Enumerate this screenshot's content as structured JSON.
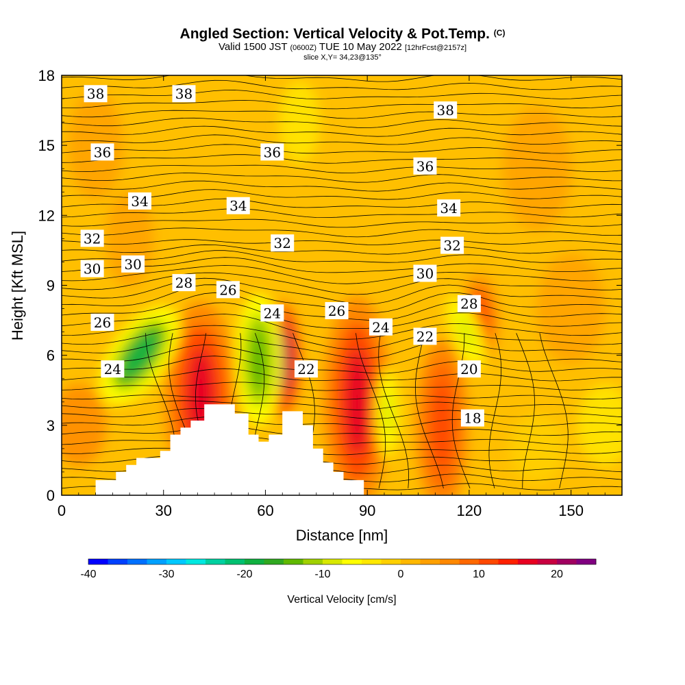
{
  "title": {
    "main": "Angled Section: Vertical Velocity & Pot.Temp.",
    "main_suffix": "(C)",
    "valid_a": "Valid 1500 JST",
    "valid_b": "(0600Z)",
    "valid_c": "TUE 10 May 2022",
    "valid_d": "[12hrFcst@2157z]",
    "slice": "slice X,Y= 34,23@135°"
  },
  "chart_data": {
    "type": "heatmap",
    "xlabel": "Distance [nm]",
    "ylabel": "Height [Kft MSL]",
    "xlim": [
      0,
      165
    ],
    "ylim": [
      0,
      18
    ],
    "xticks": [
      0,
      30,
      60,
      90,
      120,
      150
    ],
    "yticks": [
      0,
      3,
      6,
      9,
      12,
      15,
      18
    ],
    "grid": false,
    "shaded_field": "Vertical Velocity [cm/s]",
    "contour_field": "Potential Temperature (C)",
    "terrain_profile": [
      [
        0,
        0
      ],
      [
        10,
        0
      ],
      [
        10,
        0.65
      ],
      [
        16,
        0.65
      ],
      [
        16,
        1.0
      ],
      [
        19,
        1.0
      ],
      [
        19,
        1.3
      ],
      [
        22,
        1.3
      ],
      [
        22,
        1.6
      ],
      [
        29,
        1.6
      ],
      [
        29,
        1.9
      ],
      [
        32,
        1.9
      ],
      [
        32,
        2.6
      ],
      [
        35,
        2.6
      ],
      [
        35,
        2.9
      ],
      [
        38,
        2.9
      ],
      [
        38,
        3.2
      ],
      [
        42,
        3.2
      ],
      [
        42,
        3.9
      ],
      [
        51,
        3.9
      ],
      [
        51,
        3.5
      ],
      [
        55,
        3.5
      ],
      [
        55,
        2.6
      ],
      [
        58,
        2.6
      ],
      [
        58,
        2.3
      ],
      [
        61,
        2.3
      ],
      [
        61,
        2.6
      ],
      [
        65,
        2.6
      ],
      [
        65,
        3.6
      ],
      [
        71,
        3.6
      ],
      [
        71,
        3.0
      ],
      [
        74,
        3.0
      ],
      [
        74,
        2.0
      ],
      [
        77,
        2.0
      ],
      [
        77,
        1.4
      ],
      [
        80,
        1.4
      ],
      [
        80,
        1.0
      ],
      [
        83,
        1.0
      ],
      [
        83,
        0.65
      ],
      [
        89,
        0.65
      ],
      [
        89,
        0
      ]
    ],
    "updrafts": [
      {
        "x": 41,
        "y": 4.2,
        "value": 15
      },
      {
        "x": 65,
        "y": 5.8,
        "value": 20
      },
      {
        "x": 87,
        "y": 4.0,
        "value": 15
      },
      {
        "x": 112,
        "y": 3.0,
        "value": 12
      },
      {
        "x": 123,
        "y": 7.5,
        "value": 10
      }
    ],
    "downdrafts": [
      {
        "x": 23,
        "y": 6.0,
        "value": -18
      },
      {
        "x": 58,
        "y": 5.8,
        "value": -15
      },
      {
        "x": 119,
        "y": 7.0,
        "value": -10
      },
      {
        "x": 96,
        "y": 3.5,
        "value": -8
      }
    ],
    "contour_labels": [
      {
        "value": "38",
        "x": 10,
        "y": 17.2
      },
      {
        "value": "38",
        "x": 36,
        "y": 17.2
      },
      {
        "value": "38",
        "x": 113,
        "y": 16.5
      },
      {
        "value": "36",
        "x": 12,
        "y": 14.7
      },
      {
        "value": "36",
        "x": 62,
        "y": 14.7
      },
      {
        "value": "36",
        "x": 107,
        "y": 14.1
      },
      {
        "value": "34",
        "x": 23,
        "y": 12.6
      },
      {
        "value": "34",
        "x": 52,
        "y": 12.4
      },
      {
        "value": "34",
        "x": 114,
        "y": 12.3
      },
      {
        "value": "32",
        "x": 9,
        "y": 11.0
      },
      {
        "value": "32",
        "x": 65,
        "y": 10.8
      },
      {
        "value": "32",
        "x": 115,
        "y": 10.7
      },
      {
        "value": "30",
        "x": 9,
        "y": 9.7
      },
      {
        "value": "30",
        "x": 21,
        "y": 9.9
      },
      {
        "value": "30",
        "x": 107,
        "y": 9.5
      },
      {
        "value": "28",
        "x": 36,
        "y": 9.1
      },
      {
        "value": "28",
        "x": 120,
        "y": 8.2
      },
      {
        "value": "26",
        "x": 12,
        "y": 7.4
      },
      {
        "value": "26",
        "x": 49,
        "y": 8.8
      },
      {
        "value": "26",
        "x": 81,
        "y": 7.9
      },
      {
        "value": "24",
        "x": 15,
        "y": 5.4
      },
      {
        "value": "24",
        "x": 62,
        "y": 7.8
      },
      {
        "value": "24",
        "x": 94,
        "y": 7.2
      },
      {
        "value": "22",
        "x": 72,
        "y": 5.4
      },
      {
        "value": "22",
        "x": 107,
        "y": 6.8
      },
      {
        "value": "20",
        "x": 120,
        "y": 5.4
      },
      {
        "value": "18",
        "x": 121,
        "y": 3.3
      }
    ],
    "colorbar": {
      "label": "Vertical Velocity [cm/s]",
      "min": -40,
      "max": 25,
      "ticks": [
        "-40",
        "-30",
        "-20",
        "-10",
        "0",
        "10",
        "20"
      ],
      "colors": [
        "#0000ff",
        "#0040ff",
        "#0070ff",
        "#00a0ff",
        "#00c8ff",
        "#00e8e0",
        "#00d0a0",
        "#00c070",
        "#10b040",
        "#30a820",
        "#60b800",
        "#a0d000",
        "#d8e800",
        "#ffff00",
        "#ffe800",
        "#ffd000",
        "#ffb800",
        "#ffa000",
        "#ff8800",
        "#ff6800",
        "#ff4800",
        "#ff2000",
        "#e80020",
        "#c80040",
        "#a00060",
        "#800080"
      ]
    }
  }
}
